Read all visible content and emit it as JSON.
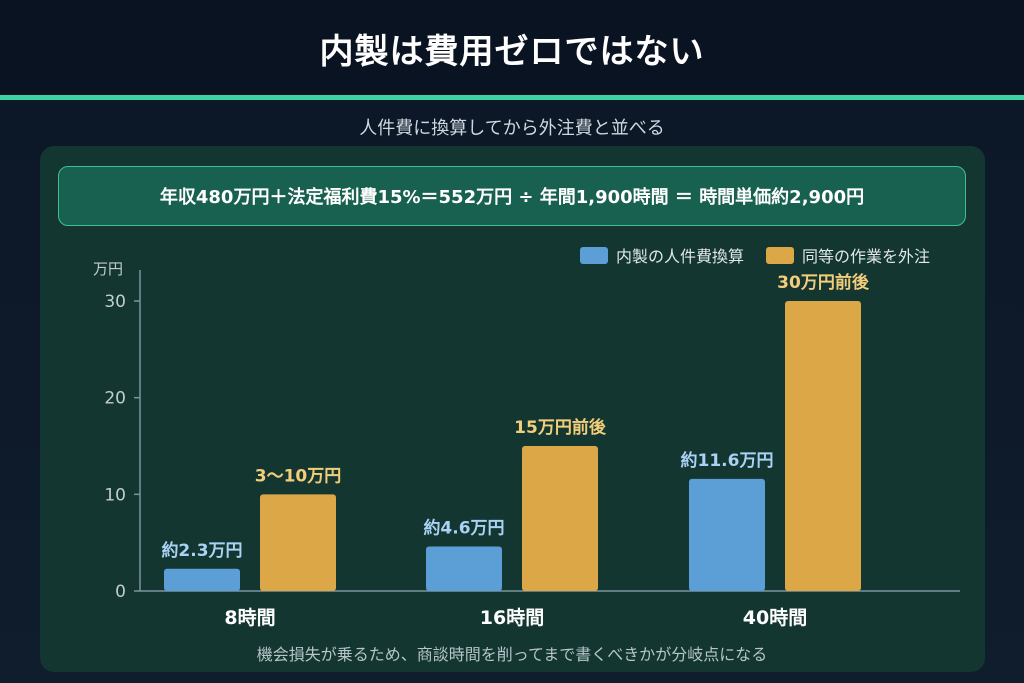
{
  "title": "内製は費用ゼロではない",
  "subtitle": "人件費に換算してから外注費と並べる",
  "formula": "年収480万円＋法定福利費15%＝552万円 ÷ 年間1,900時間 ＝ 時間単価約2,900円",
  "footnote": "機会損失が乗るため、商談時間を削ってまで書くべきかが分岐点になる",
  "colors": {
    "inhouse": "#5b9fd6",
    "outsource": "#dba747",
    "accent": "#3fd1a4"
  },
  "chart_data": {
    "type": "bar",
    "categories": [
      "8時間",
      "16時間",
      "40時間"
    ],
    "ylabel": "万円",
    "ylim": [
      0,
      30
    ],
    "yticks": [
      0,
      10,
      20,
      30
    ],
    "legend_position": "top-right",
    "series": [
      {
        "name": "内製の人件費換算",
        "values": [
          2.3,
          4.6,
          11.6
        ],
        "labels": [
          "約2.3万円",
          "約4.6万円",
          "約11.6万円"
        ]
      },
      {
        "name": "同等の作業を外注",
        "values": [
          10,
          15,
          30
        ],
        "labels": [
          "3〜10万円",
          "15万円前後",
          "30万円前後"
        ]
      }
    ]
  }
}
